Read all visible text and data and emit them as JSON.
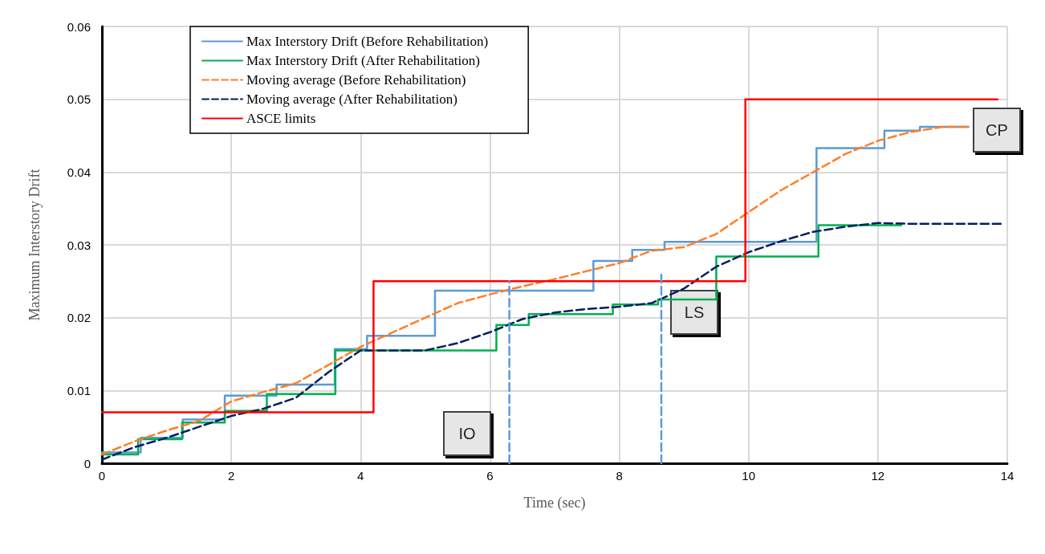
{
  "chart_data": {
    "type": "step",
    "xlabel": "Time (sec)",
    "ylabel": "Maximum Interstory Drift",
    "xlim": [
      0,
      14
    ],
    "xticks": [
      0,
      2,
      4,
      6,
      8,
      10,
      12,
      14
    ],
    "ylim": [
      0,
      0.06
    ],
    "yticks": [
      0,
      0.01,
      0.02,
      0.03,
      0.04,
      0.05,
      0.06
    ],
    "grid": true,
    "legend": "top left",
    "marker": "none",
    "series": [
      {
        "name": "Max Interstory Drift (Before Rehabilitation)",
        "color": "#5b9bd5",
        "x": [
          0,
          0.6,
          1.25,
          1.9,
          2.7,
          3.6,
          4.1,
          5.15,
          7.6,
          8.2,
          8.7,
          11.05,
          12.1,
          12.65,
          13.4
        ],
        "values": [
          0.0015,
          0.0035,
          0.006,
          0.0093,
          0.0108,
          0.0157,
          0.0175,
          0.0237,
          0.0278,
          0.0293,
          0.0304,
          0.0433,
          0.0457,
          0.0462,
          0.0462
        ]
      },
      {
        "name": "Max Interstory Drift (After Rehabilitation)",
        "color": "#00b050",
        "x": [
          0,
          0.56,
          1.24,
          1.9,
          2.55,
          3.61,
          6.1,
          6.6,
          7.9,
          8.6,
          9.5,
          11.08,
          12.36
        ],
        "values": [
          0.0012,
          0.0033,
          0.0056,
          0.0072,
          0.0095,
          0.0155,
          0.019,
          0.0205,
          0.0218,
          0.0225,
          0.0284,
          0.0327,
          0.0327
        ]
      },
      {
        "name": "Moving average (Before Rehabilitation)",
        "type": "line",
        "line_style": "dashed",
        "color": "#ff7f27",
        "x": [
          0,
          0.5,
          1,
          1.5,
          2,
          2.5,
          3,
          3.5,
          4,
          4.5,
          5,
          5.5,
          6,
          6.5,
          7,
          7.5,
          8,
          8.5,
          9,
          9.5,
          10,
          10.5,
          11,
          11.5,
          12,
          12.5,
          13,
          13.4
        ],
        "values": [
          0.0012,
          0.003,
          0.0045,
          0.0058,
          0.0085,
          0.0098,
          0.011,
          0.0135,
          0.016,
          0.018,
          0.02,
          0.022,
          0.0232,
          0.0243,
          0.0253,
          0.0264,
          0.0275,
          0.0292,
          0.0297,
          0.0315,
          0.0345,
          0.0375,
          0.04,
          0.0425,
          0.0443,
          0.0455,
          0.0462,
          0.0462
        ]
      },
      {
        "name": "Moving average (After Rehabilitation)",
        "type": "line",
        "line_style": "dashed",
        "color": "#002060",
        "x": [
          0,
          0.5,
          1,
          1.5,
          2,
          2.5,
          3,
          3.5,
          4,
          4.5,
          5,
          5.5,
          6,
          6.5,
          7,
          7.5,
          8,
          8.5,
          9,
          9.5,
          10,
          10.5,
          11,
          11.5,
          12,
          12.5,
          13,
          13.9
        ],
        "values": [
          0.0005,
          0.0022,
          0.0035,
          0.005,
          0.0065,
          0.0075,
          0.009,
          0.0125,
          0.0155,
          0.0155,
          0.0155,
          0.0165,
          0.018,
          0.0198,
          0.0207,
          0.0212,
          0.0215,
          0.022,
          0.024,
          0.027,
          0.029,
          0.0305,
          0.0318,
          0.0325,
          0.033,
          0.0329,
          0.0329,
          0.0329
        ]
      },
      {
        "name": "ASCE limits",
        "color": "#ff0000",
        "x": [
          0,
          4.2,
          9.95,
          13.85
        ],
        "values": [
          0.007,
          0.025,
          0.05,
          0.05
        ]
      },
      {
        "type": "line",
        "line_style": "dashed",
        "color": "#5b9bd5",
        "x": [
          6.3,
          6.3
        ],
        "values": [
          0,
          0.025
        ]
      },
      {
        "type": "line",
        "line_style": "dashed",
        "color": "#5b9bd5",
        "x": [
          8.65,
          8.65
        ],
        "values": [
          0,
          0.026
        ]
      }
    ],
    "annotations": [
      "IO",
      "LS",
      "CP"
    ]
  }
}
